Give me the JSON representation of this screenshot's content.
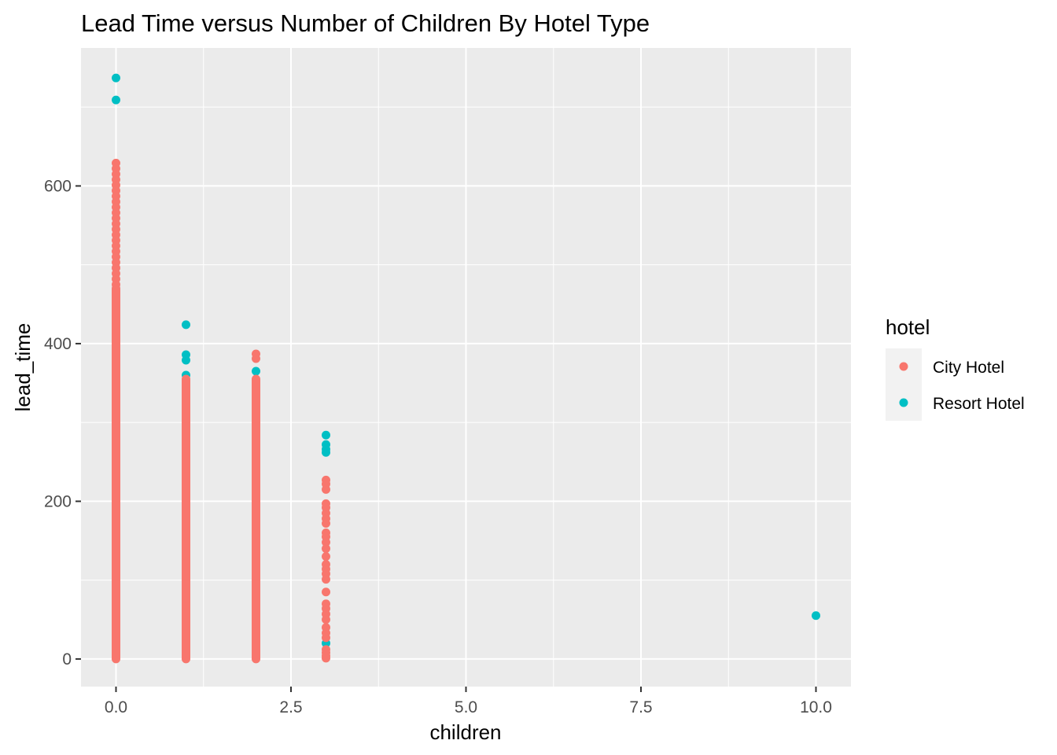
{
  "chart_data": {
    "type": "scatter",
    "title": "Lead Time versus Number of Children By Hotel Type",
    "xlabel": "children",
    "ylabel": "lead_time",
    "xlim": [
      -0.5,
      10.5
    ],
    "ylim": [
      -35,
      775
    ],
    "x_ticks": [
      {
        "value": 0,
        "label": "0.0"
      },
      {
        "value": 2.5,
        "label": "2.5"
      },
      {
        "value": 5,
        "label": "5.0"
      },
      {
        "value": 7.5,
        "label": "7.5"
      },
      {
        "value": 10,
        "label": "10.0"
      }
    ],
    "y_ticks": [
      {
        "value": 0,
        "label": "0"
      },
      {
        "value": 200,
        "label": "200"
      },
      {
        "value": 400,
        "label": "400"
      },
      {
        "value": 600,
        "label": "600"
      }
    ],
    "grid": true,
    "background": "#ebebeb",
    "legend": {
      "title": "hotel",
      "position": "right"
    },
    "series": [
      {
        "name": "Resort Hotel",
        "color": "#00bfc4",
        "points": [
          {
            "x": 0,
            "y": 737
          },
          {
            "x": 0,
            "y": 709
          },
          {
            "x": 1,
            "y": 424
          },
          {
            "x": 1,
            "y": 386
          },
          {
            "x": 1,
            "y": 379
          },
          {
            "x": 1,
            "y": 360
          },
          {
            "x": 2,
            "y": 365
          },
          {
            "x": 3,
            "y": 284
          },
          {
            "x": 3,
            "y": 272
          },
          {
            "x": 3,
            "y": 266
          },
          {
            "x": 3,
            "y": 262
          },
          {
            "x": 3,
            "y": 20
          },
          {
            "x": 10,
            "y": 55
          }
        ]
      },
      {
        "name": "City Hotel",
        "color": "#f8766d",
        "ranges": [
          {
            "x": 0,
            "from": 0,
            "to": 470
          },
          {
            "x": 1,
            "from": 0,
            "to": 355
          },
          {
            "x": 2,
            "from": 0,
            "to": 355
          }
        ],
        "points": [
          {
            "x": 0,
            "y": 629
          },
          {
            "x": 0,
            "y": 622
          },
          {
            "x": 0,
            "y": 615
          },
          {
            "x": 0,
            "y": 608
          },
          {
            "x": 0,
            "y": 601
          },
          {
            "x": 0,
            "y": 594
          },
          {
            "x": 0,
            "y": 587
          },
          {
            "x": 0,
            "y": 580
          },
          {
            "x": 0,
            "y": 573
          },
          {
            "x": 0,
            "y": 566
          },
          {
            "x": 0,
            "y": 559
          },
          {
            "x": 0,
            "y": 552
          },
          {
            "x": 0,
            "y": 545
          },
          {
            "x": 0,
            "y": 538
          },
          {
            "x": 0,
            "y": 531
          },
          {
            "x": 0,
            "y": 524
          },
          {
            "x": 0,
            "y": 517
          },
          {
            "x": 0,
            "y": 510
          },
          {
            "x": 0,
            "y": 503
          },
          {
            "x": 0,
            "y": 496
          },
          {
            "x": 0,
            "y": 489
          },
          {
            "x": 0,
            "y": 482
          },
          {
            "x": 0,
            "y": 475
          },
          {
            "x": 2,
            "y": 387
          },
          {
            "x": 2,
            "y": 381
          },
          {
            "x": 3,
            "y": 227
          },
          {
            "x": 3,
            "y": 222
          },
          {
            "x": 3,
            "y": 215
          },
          {
            "x": 3,
            "y": 197
          },
          {
            "x": 3,
            "y": 192
          },
          {
            "x": 3,
            "y": 185
          },
          {
            "x": 3,
            "y": 178
          },
          {
            "x": 3,
            "y": 172
          },
          {
            "x": 3,
            "y": 160
          },
          {
            "x": 3,
            "y": 155
          },
          {
            "x": 3,
            "y": 148
          },
          {
            "x": 3,
            "y": 140
          },
          {
            "x": 3,
            "y": 130
          },
          {
            "x": 3,
            "y": 120
          },
          {
            "x": 3,
            "y": 114
          },
          {
            "x": 3,
            "y": 108
          },
          {
            "x": 3,
            "y": 101
          },
          {
            "x": 3,
            "y": 85
          },
          {
            "x": 3,
            "y": 70
          },
          {
            "x": 3,
            "y": 64
          },
          {
            "x": 3,
            "y": 57
          },
          {
            "x": 3,
            "y": 50
          },
          {
            "x": 3,
            "y": 40
          },
          {
            "x": 3,
            "y": 33
          },
          {
            "x": 3,
            "y": 27
          },
          {
            "x": 3,
            "y": 12
          },
          {
            "x": 3,
            "y": 8
          },
          {
            "x": 3,
            "y": 4
          },
          {
            "x": 3,
            "y": 1
          }
        ]
      }
    ]
  }
}
